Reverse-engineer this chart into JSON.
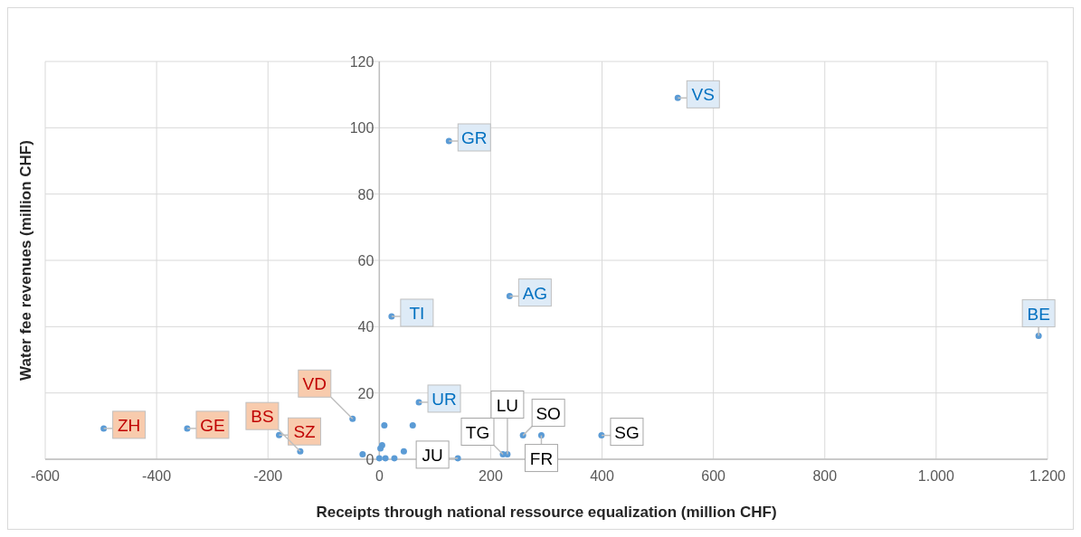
{
  "chart_data": {
    "type": "scatter",
    "xlabel": "Receipts through national ressource equalization (million CHF)",
    "ylabel": "Water fee revenues (million CHF)",
    "xlim": [
      -600,
      1200
    ],
    "xticks": [
      -600,
      -400,
      -200,
      0,
      200,
      400,
      600,
      800,
      {
        "value": 1000,
        "label": "1.000"
      },
      {
        "value": 1200,
        "label": "1.200"
      }
    ],
    "ylim": [
      0,
      120
    ],
    "yticks": [
      0,
      20,
      40,
      60,
      80,
      100,
      120
    ],
    "grid": true,
    "marker": "circle",
    "series": [
      {
        "color": "#5b9bd5",
        "x": [
          536,
          125,
          234,
          22,
          1184,
          71
        ],
        "values": [
          109,
          96,
          49.2,
          43.1,
          37.2,
          17.2
        ],
        "value_labels": [
          "VS",
          "GR",
          "AG",
          "TI",
          "BE",
          "UR"
        ]
      },
      {
        "color": "#5b9bd5",
        "x": [
          -495,
          -345,
          -180,
          -48,
          -142
        ],
        "values": [
          9.3,
          9.3,
          7.3,
          12.2,
          2.4
        ],
        "value_labels": [
          "ZH",
          "GE",
          "SZ",
          "VD",
          "BS"
        ]
      },
      {
        "color": "#5b9bd5",
        "x": [
          258,
          291,
          399,
          222,
          230,
          141,
          9,
          60,
          5,
          2,
          -30,
          44,
          0,
          11,
          27
        ],
        "values": [
          7.2,
          7.2,
          7.2,
          1.5,
          1.5,
          0.3,
          10.2,
          10.2,
          4.2,
          3.3,
          1.5,
          2.4,
          0.3,
          0.3,
          0.3
        ],
        "value_labels": [
          "SO",
          "FR",
          "SG",
          "TG",
          "LU",
          "JU",
          null,
          null,
          null,
          null,
          null,
          null,
          null,
          null,
          null
        ]
      }
    ]
  }
}
